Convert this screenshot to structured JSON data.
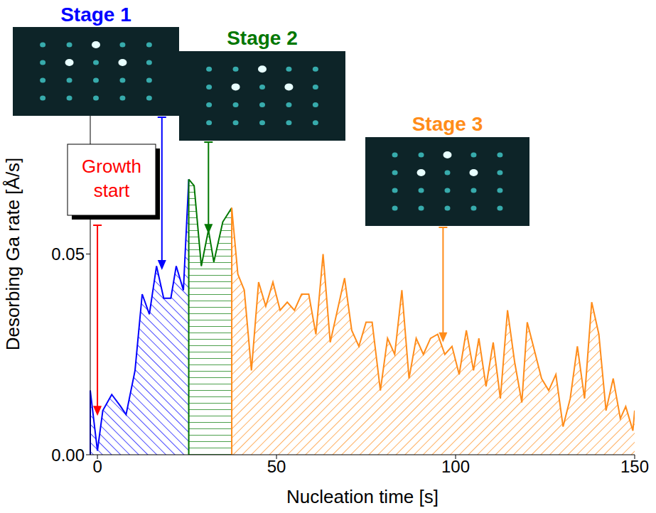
{
  "chart_data": {
    "type": "area",
    "x_label": "Nucleation time [s]",
    "y_label": "Desorbing Ga rate [Å/s]",
    "xlim": [
      -2,
      150
    ],
    "xticks": [
      0,
      50,
      100,
      150
    ],
    "ylim": [
      0,
      0.1
    ],
    "yticks": [
      {
        "value": 0,
        "label": "0.00"
      },
      {
        "value": 0.05,
        "label": "0.05"
      }
    ],
    "grid": false,
    "series": [
      {
        "name": "Stage 1",
        "color": "#0000ff",
        "x": [
          -2,
          0,
          1.5,
          4,
          6.5,
          8,
          10.5,
          12.5,
          14.5,
          16.5,
          18.5,
          20.5,
          22,
          24,
          25.5
        ],
        "values": [
          0.016,
          0.001,
          0.011,
          0.015,
          0.012,
          0.01,
          0.021,
          0.04,
          0.035,
          0.047,
          0.039,
          0.039,
          0.047,
          0.041,
          0.0686
        ],
        "arrow": {
          "x": 18,
          "y": 0.046
        }
      },
      {
        "name": "Stage 2",
        "color": "#007700",
        "x": [
          25.5,
          27,
          29,
          31,
          32.5,
          35,
          37.5
        ],
        "values": [
          0.0686,
          0.067,
          0.047,
          0.056,
          0.048,
          0.058,
          0.0615
        ],
        "arrow": {
          "x": 31,
          "y": 0.055
        }
      },
      {
        "name": "Stage 3",
        "color": "#ff8c1a",
        "x": [
          37.5,
          39.2,
          41,
          43,
          45,
          47,
          49,
          51,
          53,
          55,
          57,
          59,
          61,
          63,
          65,
          67,
          69,
          71,
          73,
          75,
          76.7,
          79,
          81,
          83,
          85,
          87,
          89,
          91,
          93,
          95,
          97,
          99,
          101,
          103,
          105,
          106.5,
          108.5,
          110.5,
          112.5,
          114.5,
          116.5,
          118.5,
          120,
          122,
          124,
          126,
          128,
          130,
          132,
          134,
          136,
          138,
          140,
          142,
          144,
          146,
          147.5,
          149.5,
          150
        ],
        "values": [
          0.0615,
          0.045,
          0.041,
          0.021,
          0.043,
          0.037,
          0.043,
          0.036,
          0.038,
          0.036,
          0.04,
          0.04,
          0.03,
          0.05,
          0.028,
          0.036,
          0.044,
          0.031,
          0.027,
          0.033,
          0.033,
          0.016,
          0.029,
          0.025,
          0.041,
          0.019,
          0.029,
          0.025,
          0.029,
          0.03,
          0.025,
          0.027,
          0.02,
          0.031,
          0.021,
          0.029,
          0.017,
          0.028,
          0.014,
          0.036,
          0.023,
          0.013,
          0.033,
          0.026,
          0.019,
          0.016,
          0.02,
          0.007,
          0.014,
          0.027,
          0.014,
          0.038,
          0.03,
          0.011,
          0.019,
          0.009,
          0.012,
          0.006,
          0.011
        ],
        "arrow": {
          "x": 96.5,
          "y": 0.028
        }
      }
    ],
    "annotations": [
      {
        "text": "Growth start",
        "x": 0,
        "y": 0.0097,
        "color": "#ff0000"
      }
    ]
  }
}
